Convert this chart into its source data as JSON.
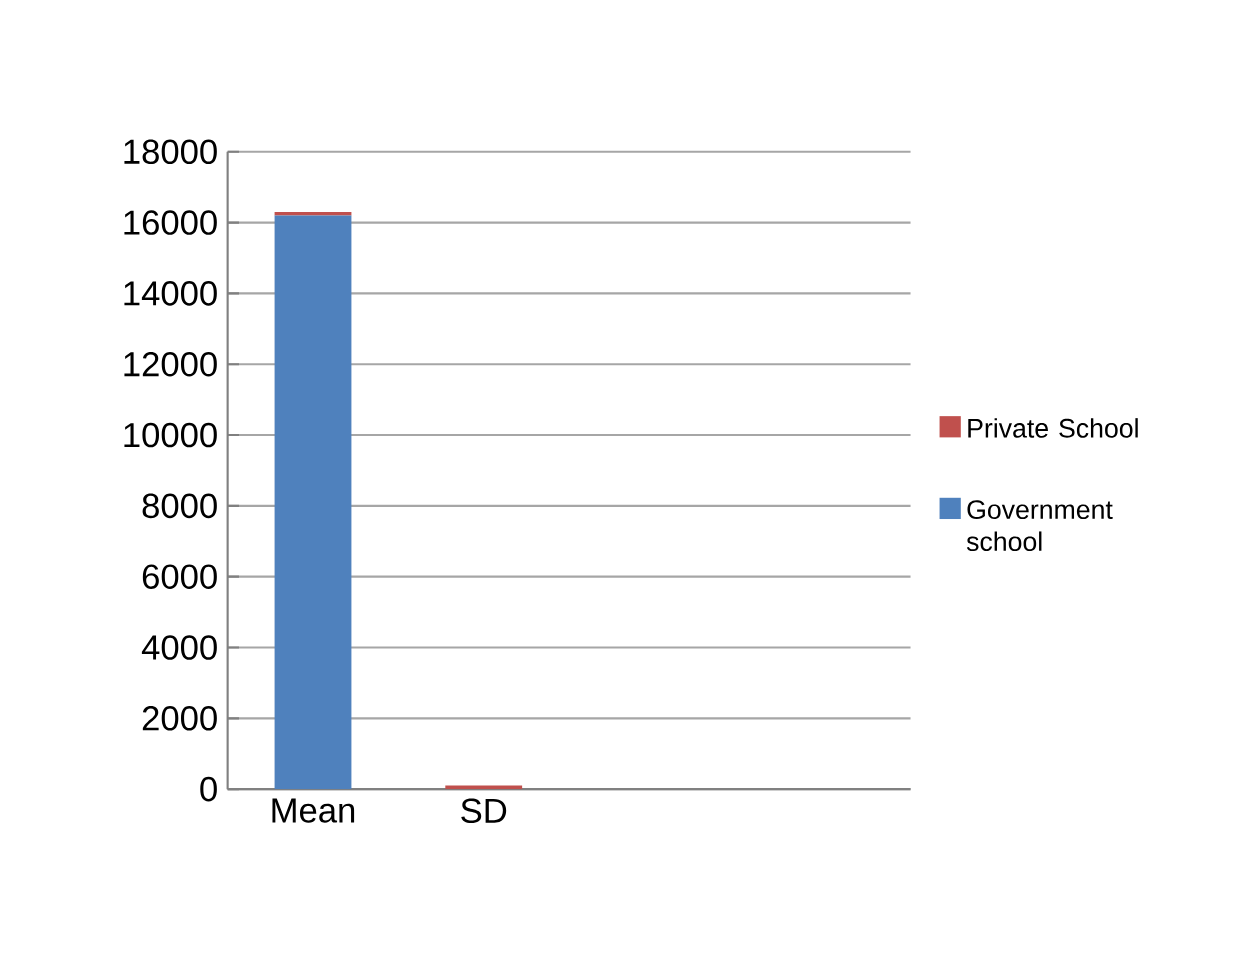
{
  "chart_data": {
    "type": "bar",
    "stacked": true,
    "categories": [
      "Mean",
      "SD",
      null,
      null
    ],
    "series": [
      {
        "name": "Government school",
        "color": "#4f81bd",
        "values": [
          16200,
          0,
          0,
          0
        ]
      },
      {
        "name": "Private School",
        "color": "#c0504d",
        "values": [
          100,
          100,
          0,
          0
        ]
      }
    ],
    "ylim": [
      0,
      18000
    ],
    "yticks": [
      0,
      2000,
      4000,
      6000,
      8000,
      10000,
      12000,
      14000,
      16000,
      18000
    ],
    "grid": "y",
    "legend": "right"
  }
}
